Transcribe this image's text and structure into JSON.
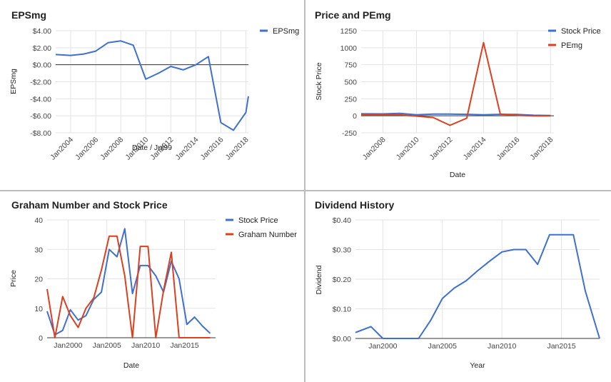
{
  "colors": {
    "blue": "#3f6fcf",
    "red": "#dc3f1f",
    "grid": "#e3e3e3",
    "zero": "#333333"
  },
  "chart_data": [
    {
      "type": "line",
      "title": "EPSmg",
      "xlabel": "Date / Jul99",
      "ylabel": "EPSmg",
      "xlim": [
        2002.8,
        2018.2
      ],
      "ylim": [
        -8,
        4
      ],
      "x_ticks": [
        2004,
        2006,
        2008,
        2010,
        2012,
        2014,
        2016,
        2018
      ],
      "x_tick_labels": [
        "Jan2004",
        "Jan2006",
        "Jan2008",
        "Jan2010",
        "Jan2012",
        "Jan2014",
        "Jan2016",
        "Jan2018"
      ],
      "y_ticks": [
        4,
        2,
        0,
        -2,
        -4,
        -6,
        -8
      ],
      "y_tick_labels": [
        "$4.00",
        "$2.00",
        "$0.00",
        "-$2.00",
        "-$4.00",
        "-$6.00",
        "-$8.00"
      ],
      "x_tick_rotated": true,
      "legend": "right",
      "series": [
        {
          "name": "EPSmg",
          "color": "blue",
          "x": [
            2002.8,
            2004,
            2005,
            2006,
            2007,
            2008,
            2009,
            2010,
            2011,
            2012,
            2013,
            2014,
            2015,
            2016,
            2017,
            2018,
            2018.2
          ],
          "y": [
            1.2,
            1.1,
            1.25,
            1.6,
            2.6,
            2.8,
            2.3,
            -1.7,
            -1.0,
            -0.2,
            -0.6,
            0.0,
            0.95,
            -6.8,
            -7.7,
            -5.6,
            -3.7
          ]
        }
      ]
    },
    {
      "type": "line",
      "title": "Price and PEmg",
      "xlabel": "Date",
      "ylabel": "Stock Price",
      "xlim": [
        2006.7,
        2018.2
      ],
      "ylim": [
        -250,
        1250
      ],
      "x_ticks": [
        2008,
        2010,
        2012,
        2014,
        2016,
        2018
      ],
      "x_tick_labels": [
        "Jan2008",
        "Jan2010",
        "Jan2012",
        "Jan2014",
        "Jan2016",
        "Jan2018"
      ],
      "y_ticks": [
        1250,
        1000,
        750,
        500,
        250,
        0,
        -250
      ],
      "y_tick_labels": [
        "1250",
        "1000",
        "750",
        "500",
        "250",
        "0",
        "-250"
      ],
      "x_tick_rotated": true,
      "legend": "right",
      "series": [
        {
          "name": "Stock Price",
          "color": "blue",
          "x": [
            2006.7,
            2008,
            2009,
            2010,
            2011,
            2012,
            2013,
            2014,
            2015,
            2016,
            2017,
            2018
          ],
          "y": [
            30,
            28,
            35,
            15,
            25,
            25,
            22,
            15,
            22,
            20,
            8,
            5
          ]
        },
        {
          "name": "PEmg",
          "color": "red",
          "x": [
            2006.7,
            2008,
            2009,
            2010,
            2011,
            2012,
            2013,
            2014,
            2015,
            2016,
            2017,
            2018
          ],
          "y": [
            15,
            12,
            14,
            -5,
            -25,
            -140,
            -35,
            1075,
            25,
            8,
            0,
            0
          ]
        }
      ]
    },
    {
      "type": "line",
      "title": "Graham Number and Stock Price",
      "xlabel": "Date",
      "ylabel": "Price",
      "xlim": [
        1997.3,
        2019.0
      ],
      "ylim": [
        0,
        40
      ],
      "x_ticks": [
        2000,
        2005,
        2010,
        2015
      ],
      "x_tick_labels": [
        "Jan2000",
        "Jan2005",
        "Jan2010",
        "Jan2015"
      ],
      "y_ticks": [
        40,
        30,
        20,
        10,
        0
      ],
      "y_tick_labels": [
        "40",
        "30",
        "20",
        "10",
        "0"
      ],
      "x_tick_rotated": false,
      "legend": "right",
      "series": [
        {
          "name": "Stock Price",
          "color": "blue",
          "x": [
            1997.3,
            1998.3,
            1999.3,
            2000.3,
            2001.3,
            2002.3,
            2003.3,
            2004.3,
            2005.3,
            2006.3,
            2007.3,
            2008.3,
            2009.3,
            2010.3,
            2011.3,
            2012.3,
            2013.3,
            2014.3,
            2015.3,
            2016.3,
            2017.3,
            2018.3
          ],
          "y": [
            9,
            1,
            2.5,
            9.5,
            6,
            7.5,
            13,
            15.5,
            30,
            27.5,
            37,
            15,
            24.5,
            24.5,
            21,
            15.5,
            26,
            20,
            4.5,
            7,
            4,
            1.5
          ]
        },
        {
          "name": "Graham Number",
          "color": "red",
          "x": [
            1997.3,
            1998.3,
            1999.3,
            2000.3,
            2001.3,
            2002.3,
            2003.3,
            2004.3,
            2005.3,
            2006.3,
            2007.3,
            2008.3,
            2009.3,
            2010.3,
            2011.3,
            2012.3,
            2013.3,
            2014.3,
            2015.3,
            2016.3,
            2017.3,
            2018.3
          ],
          "y": [
            16.5,
            0,
            14,
            7.5,
            3.5,
            10,
            13.5,
            23,
            34.5,
            34.5,
            21,
            0,
            31,
            31,
            0,
            16,
            29,
            0,
            0,
            0,
            0,
            0
          ]
        }
      ]
    },
    {
      "type": "line",
      "title": "Dividend History",
      "xlabel": "Year",
      "ylabel": "Dividend",
      "xlim": [
        1997.7,
        2018.2
      ],
      "ylim": [
        0,
        0.4
      ],
      "x_ticks": [
        2000,
        2005,
        2010,
        2015
      ],
      "x_tick_labels": [
        "Jan2000",
        "Jan2005",
        "Jan2010",
        "Jan2015"
      ],
      "y_ticks": [
        0.4,
        0.3,
        0.2,
        0.1,
        0
      ],
      "y_tick_labels": [
        "$0.40",
        "$0.30",
        "$0.20",
        "$0.10",
        "$0.00"
      ],
      "x_tick_rotated": false,
      "legend": "none",
      "series": [
        {
          "color": "blue",
          "x": [
            1997.7,
            1999,
            2000,
            2001,
            2002,
            2003,
            2004,
            2005,
            2006,
            2007,
            2008,
            2009,
            2010,
            2011,
            2012,
            2013,
            2014,
            2015,
            2016,
            2017,
            2018.2
          ],
          "y": [
            0.02,
            0.04,
            0,
            0,
            0,
            0,
            0.06,
            0.135,
            0.17,
            0.195,
            0.23,
            0.262,
            0.292,
            0.3,
            0.3,
            0.25,
            0.35,
            0.35,
            0.35,
            0.16,
            0
          ]
        }
      ]
    }
  ]
}
